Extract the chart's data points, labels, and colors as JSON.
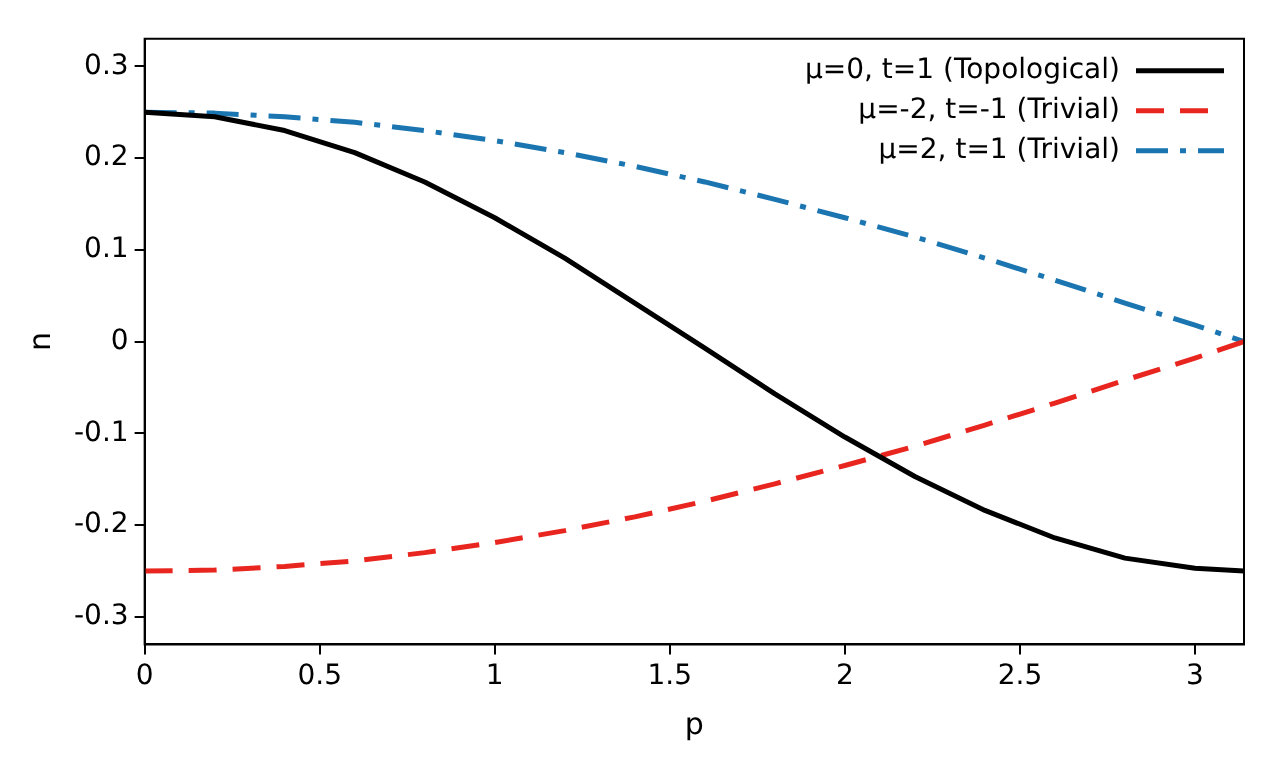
{
  "chart_data": {
    "type": "line",
    "xlabel": "p",
    "ylabel": "n",
    "x": [
      0,
      0.2,
      0.4,
      0.6,
      0.8,
      1.0,
      1.2,
      1.4,
      1.6,
      1.8,
      2.0,
      2.2,
      2.4,
      2.6,
      2.8,
      3.0,
      3.14
    ],
    "series": [
      {
        "name": "μ=0, t=1 (Topological)",
        "color": "#000000",
        "line_style": "solid",
        "values": [
          0.25,
          0.245,
          0.23,
          0.206,
          0.174,
          0.135,
          0.091,
          0.042,
          -0.007,
          -0.057,
          -0.104,
          -0.147,
          -0.184,
          -0.214,
          -0.236,
          -0.247,
          -0.25
        ]
      },
      {
        "name": "μ=-2, t=-1 (Trivial)",
        "color": "#e8261f",
        "line_style": "dashed",
        "values": [
          -0.25,
          -0.249,
          -0.245,
          -0.239,
          -0.23,
          -0.219,
          -0.206,
          -0.191,
          -0.174,
          -0.155,
          -0.135,
          -0.114,
          -0.091,
          -0.067,
          -0.042,
          -0.018,
          0
        ]
      },
      {
        "name": "μ=2, t=1 (Trivial)",
        "color": "#1a75b0",
        "line_style": "dashdot",
        "values": [
          0.25,
          0.249,
          0.245,
          0.239,
          0.23,
          0.219,
          0.206,
          0.191,
          0.174,
          0.155,
          0.135,
          0.114,
          0.091,
          0.067,
          0.042,
          0.018,
          0
        ]
      }
    ],
    "xlim": [
      0,
      3.14
    ],
    "xticks": [
      0,
      0.5,
      1,
      1.5,
      2,
      2.5,
      3
    ],
    "ylim": [
      -0.33,
      0.33
    ],
    "yticks": [
      -0.3,
      -0.2,
      -0.1,
      0,
      0.1,
      0.2,
      0.3
    ],
    "grid": false,
    "legend": "top right",
    "marker": "none"
  }
}
